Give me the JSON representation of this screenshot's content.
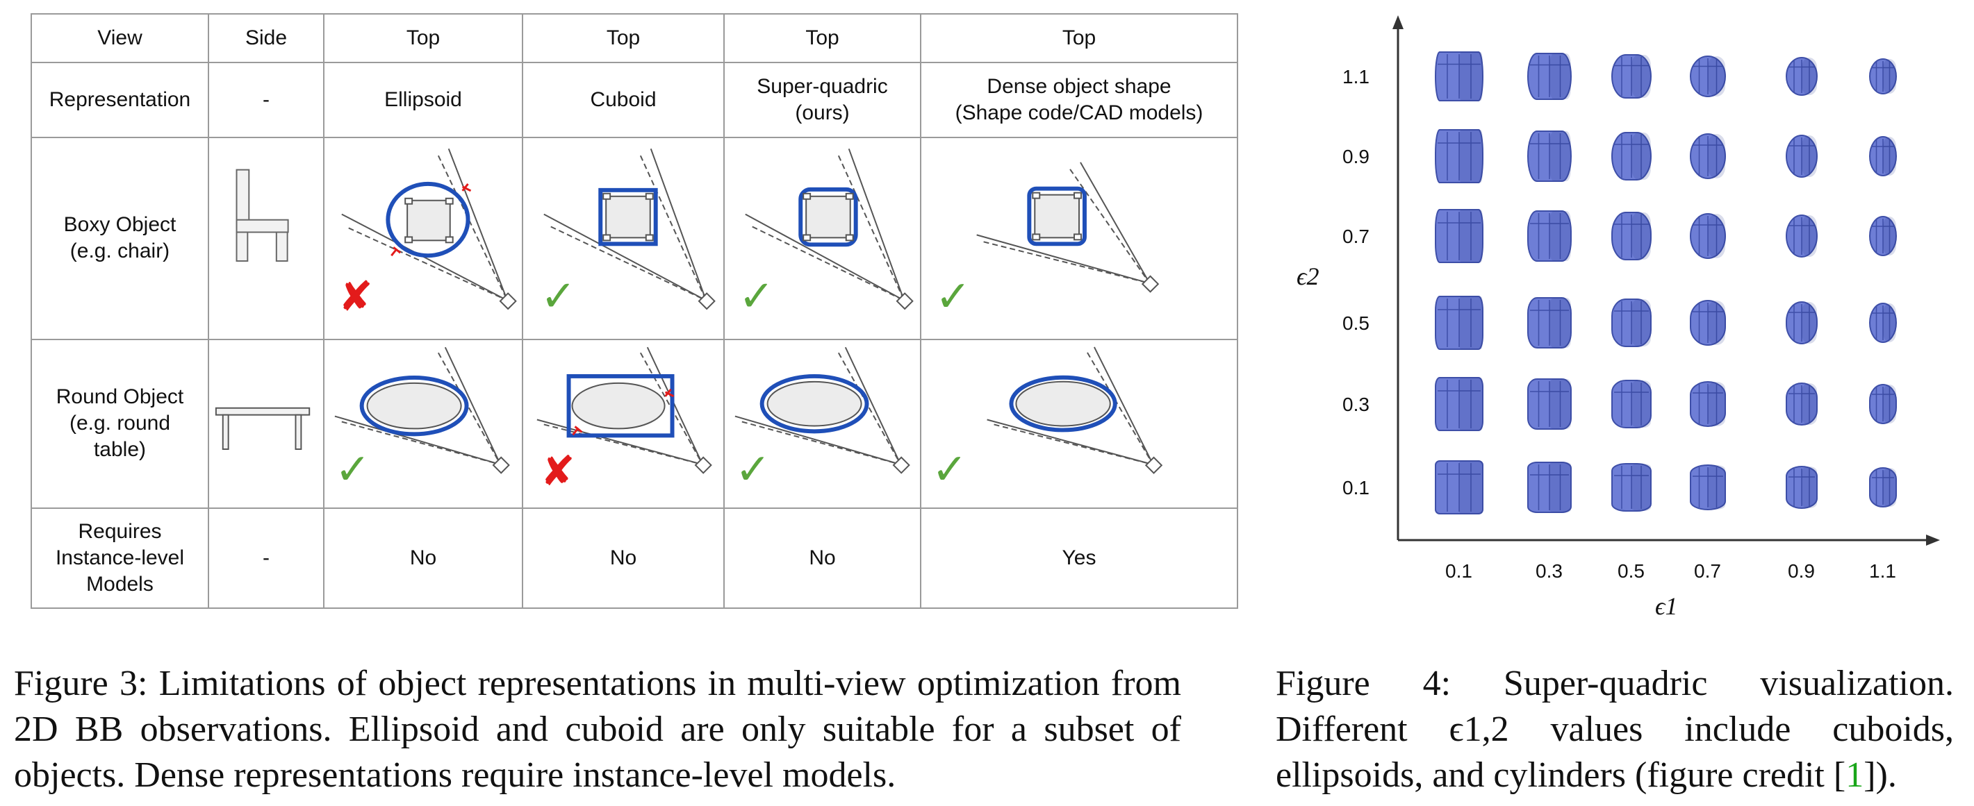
{
  "table": {
    "rows": [
      {
        "header": "View",
        "cells": [
          "Side",
          "Top",
          "Top",
          "Top",
          "Top"
        ]
      },
      {
        "header": "Representation",
        "cells": [
          "-",
          "Ellipsoid",
          "Cuboid",
          "Super-quadric\n(ours)",
          "Dense object shape\n(Shape code/CAD models)"
        ]
      },
      {
        "header": "Boxy Object\n(e.g. chair)",
        "marks": [
          "cross",
          "check",
          "check",
          "check"
        ]
      },
      {
        "header": "Round Object\n(e.g. round\ntable)",
        "marks": [
          "check",
          "cross",
          "check",
          "check"
        ]
      },
      {
        "header": "Requires\nInstance-level\nModels",
        "cells": [
          "-",
          "No",
          "No",
          "No",
          "Yes"
        ]
      }
    ]
  },
  "marks": {
    "check": "✓",
    "cross": "✘"
  },
  "colors": {
    "blue": "#1f4fb8",
    "check": "#5aa63c",
    "cross": "#e31b1b",
    "superquadric": "#6e7ed6"
  },
  "figure3_caption": "Figure 3: Limitations of object representations in multi-view optimization from 2D BB observations.  Ellipsoid and cuboid are only suitable for a subset of objects. Dense representations require instance-level models.",
  "figure4_caption": {
    "text": "Figure 4: Super-quadric visualization. Different ϵ1,2 values include cuboids, ellipsoids, and cylinders (figure credit [",
    "ref": "1",
    "tail": "])."
  },
  "superquadric": {
    "y_ticks": [
      "1.1",
      "0.9",
      "0.7",
      "0.5",
      "0.3",
      "0.1"
    ],
    "x_ticks": [
      "0.1",
      "0.3",
      "0.5",
      "0.7",
      "0.9",
      "1.1"
    ],
    "y_label": "ϵ2",
    "x_label": "ϵ1"
  }
}
